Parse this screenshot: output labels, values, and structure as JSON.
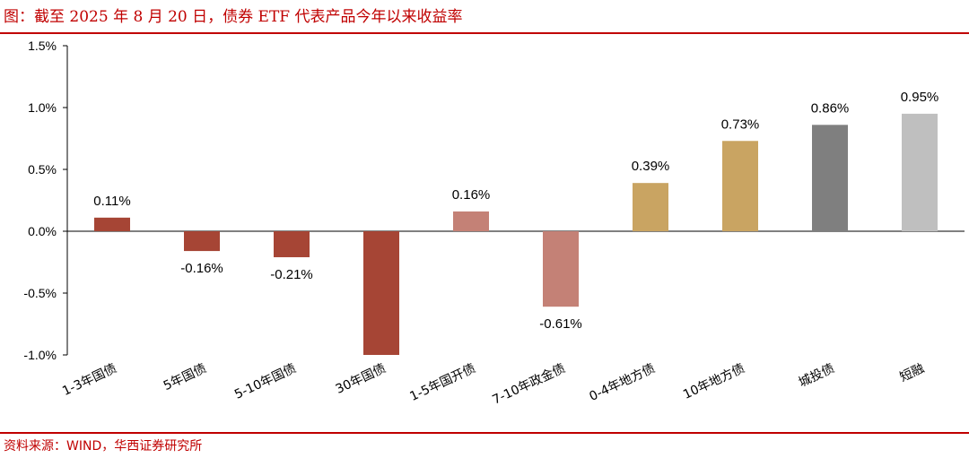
{
  "header": {
    "title": "图：截至 2025 年 8 月 20 日，债券 ETF 代表产品今年以来收益率"
  },
  "footer": {
    "source": "资料来源：WIND，华西证券研究所"
  },
  "chart_data": {
    "type": "bar",
    "categories": [
      "1-3年国债",
      "5年国债",
      "5-10年国债",
      "30年国债",
      "1-5年国开债",
      "7-10年政金债",
      "0-4年地方债",
      "10年地方债",
      "城投债",
      "短融"
    ],
    "values": [
      0.11,
      -0.16,
      -0.21,
      -1.0,
      0.16,
      -0.61,
      0.39,
      0.73,
      0.86,
      0.95
    ],
    "data_labels": [
      "0.11%",
      "-0.16%",
      "-0.21%",
      "",
      "0.16%",
      "-0.61%",
      "0.39%",
      "0.73%",
      "0.86%",
      "0.95%"
    ],
    "colors": [
      "#a64535",
      "#a64535",
      "#a64535",
      "#a64535",
      "#c48176",
      "#c48176",
      "#c9a462",
      "#c9a462",
      "#7f7f7f",
      "#bfbfbf"
    ],
    "yticks": [
      1.5,
      1.0,
      0.5,
      0.0,
      -0.5,
      -1.0
    ],
    "ytick_labels": [
      "1.5%",
      "1.0%",
      "0.5%",
      "0.0%",
      "-0.5%",
      "-1.0%"
    ],
    "ylim": [
      -1.0,
      1.5
    ],
    "xlabel": "",
    "ylabel": "",
    "grid": false,
    "legend": "none"
  }
}
